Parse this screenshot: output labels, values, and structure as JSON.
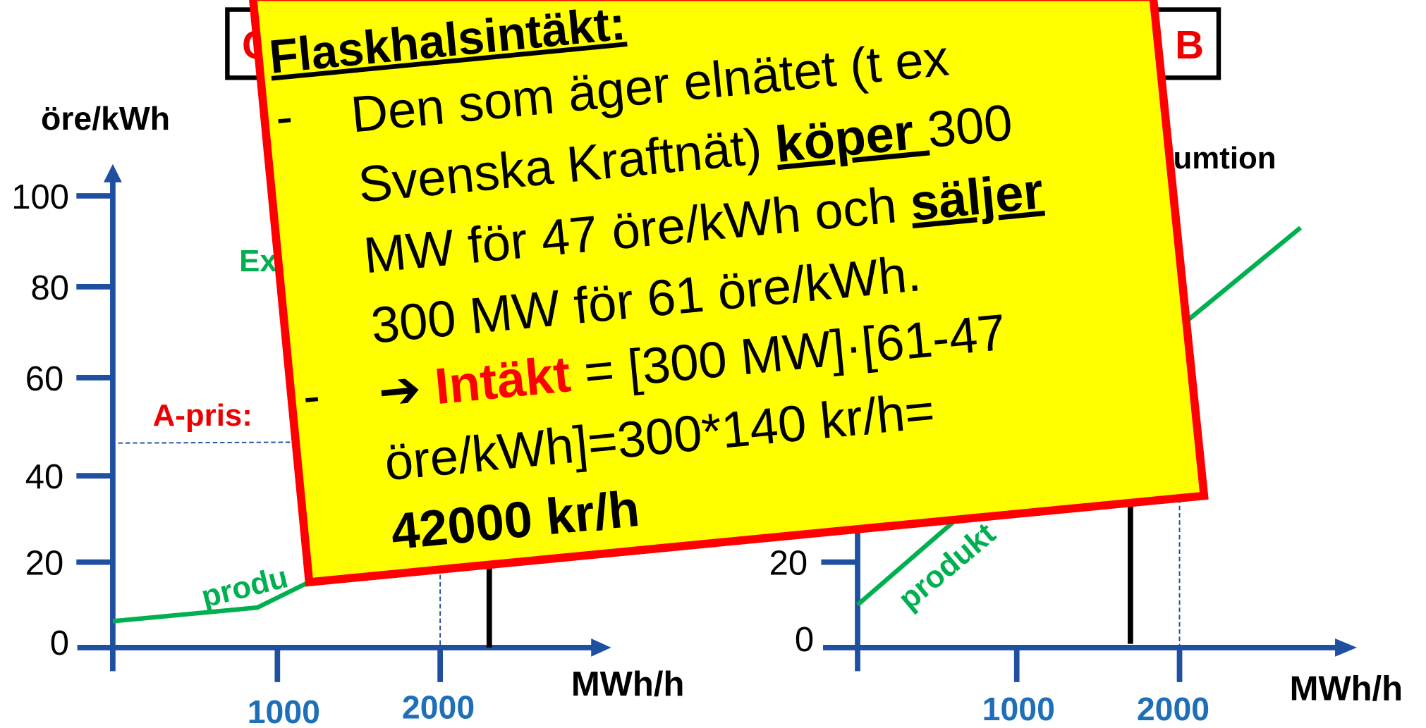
{
  "slide": {
    "header": {
      "left_letter": "C",
      "right_letter": "B"
    },
    "left_chart": {
      "y_label": "öre/kWh",
      "y_ticks": [
        "100",
        "80",
        "60",
        "40",
        "20",
        "0"
      ],
      "x_label": "MWh/h",
      "x_ticks": [
        "1000",
        "2000"
      ],
      "curve_label": "Ex",
      "price_label": "A-pris: ",
      "production_label": "produ"
    },
    "right_chart": {
      "consumption_label": "umtion",
      "y_ticks": [
        "20",
        "0"
      ],
      "x_label": "MWh/h",
      "x_ticks": [
        "1000",
        "2000"
      ],
      "production_label": "produkt"
    },
    "note": {
      "title": "Flaskhalsintäkt:",
      "bullet": "-",
      "line1": "Den som äger elnätet (t ex",
      "line2a": "Svenska Kraftnät) ",
      "line2b": "köper ",
      "line2c": "300",
      "line3a": "MW för 47 öre/kWh och ",
      "line3b": "säljer",
      "line4": "300 MW för 61 öre/kWh.",
      "arrow": "➔ ",
      "line5a": "Intäkt",
      "line5b": " = [300 MW]·[61-47",
      "line6": "öre/kWh]=300*140 kr/h=",
      "line7": "42000 kr/h"
    }
  }
}
